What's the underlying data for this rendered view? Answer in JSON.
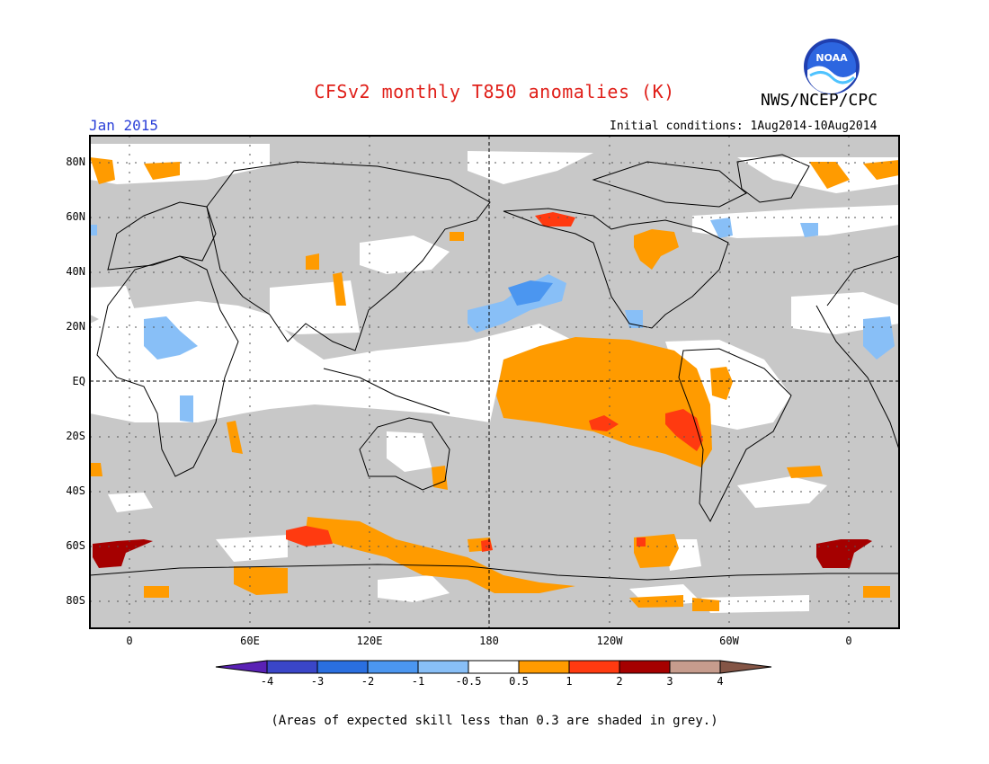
{
  "header": {
    "title": "CFSv2 monthly T850 anomalies (K)",
    "agency": "NWS/NCEP/CPC",
    "logo_text": "NOAA",
    "target_month": "Jan 2015",
    "initial_conditions": "Initial conditions:  1Aug2014-10Aug2014"
  },
  "map": {
    "lat_labels": [
      "80N",
      "60N",
      "40N",
      "20N",
      "EQ",
      "20S",
      "40S",
      "60S",
      "80S"
    ],
    "lon_labels": [
      "0",
      "60E",
      "120E",
      "180",
      "120W",
      "60W",
      "0"
    ]
  },
  "colorbar": {
    "labels": [
      "-4",
      "-3",
      "-2",
      "-1",
      "-0.5",
      "0.5",
      "1",
      "2",
      "3",
      "4"
    ],
    "colors": [
      "#5a21b5",
      "#3a46c8",
      "#2a6fe0",
      "#4b96f0",
      "#88bff7",
      "#ffffff",
      "#ff9b00",
      "#ff3a10",
      "#a50000",
      "#c69c8d",
      "#845546"
    ]
  },
  "colors": {
    "skill_grey": "#c8c8c8",
    "neutral": "#ffffff",
    "title": "#e0201a",
    "month": "#2a3fd8"
  },
  "footnote": "(Areas of expected skill less than 0.3 are shaded in grey.)"
}
